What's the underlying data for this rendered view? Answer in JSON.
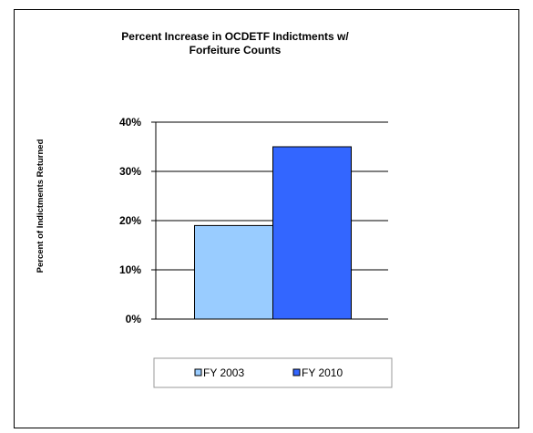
{
  "chart_data": {
    "type": "bar",
    "title": "Percent Increase in OCDETF Indictments w/ Forfeiture Counts",
    "title_lines": [
      "Percent Increase in OCDETF Indictments w/",
      "Forfeiture Counts"
    ],
    "ylabel": "Percent of Indictments Returned",
    "xlabel": "",
    "ylim": [
      0,
      40
    ],
    "yticks": [
      0,
      10,
      20,
      30,
      40
    ],
    "ytick_labels": [
      "0%",
      "10%",
      "20%",
      "30%",
      "40%"
    ],
    "grid": true,
    "legend_position": "bottom",
    "series": [
      {
        "name": "FY 2003",
        "values": [
          19
        ],
        "color": "#99ccff"
      },
      {
        "name": "FY 2010",
        "values": [
          35
        ],
        "color": "#3366ff"
      }
    ]
  }
}
